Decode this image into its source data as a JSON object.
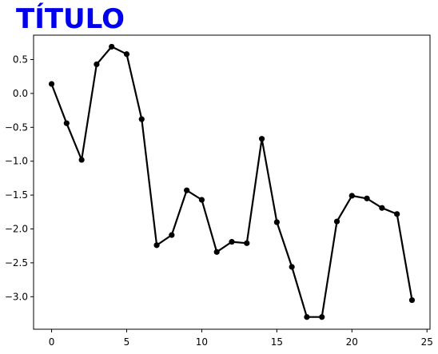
{
  "chart_data": {
    "type": "line",
    "title": "TÍTULO",
    "title_color": "#0000ee",
    "line_color": "#000000",
    "marker": "circle",
    "xlabel": "",
    "ylabel": "",
    "grid": false,
    "xlim": [
      -1.2,
      25.2
    ],
    "ylim": [
      -3.48,
      0.86
    ],
    "x_ticks": [
      0,
      5,
      10,
      15,
      20,
      25
    ],
    "y_ticks": [
      0.5,
      0.0,
      -0.5,
      -1.0,
      -1.5,
      -2.0,
      -2.5,
      -3.0
    ],
    "x_tick_labels": [
      "0",
      "5",
      "10",
      "15",
      "20",
      "25"
    ],
    "y_tick_labels": [
      "0.5",
      "0.0",
      "−0.5",
      "−1.0",
      "−1.5",
      "−2.0",
      "−2.5",
      "−3.0"
    ],
    "series": [
      {
        "x": [
          0,
          1,
          2,
          3,
          4,
          5,
          6,
          7,
          8,
          9,
          10,
          11,
          12,
          13,
          14,
          15,
          16,
          17,
          18,
          19,
          20,
          21,
          22,
          23,
          24
        ],
        "y": [
          0.14,
          -0.44,
          -0.98,
          0.43,
          0.69,
          0.58,
          -0.38,
          -2.24,
          -2.09,
          -1.43,
          -1.57,
          -2.34,
          -2.19,
          -2.21,
          -0.67,
          -1.9,
          -2.56,
          -3.3,
          -3.3,
          -1.89,
          -1.51,
          -1.55,
          -1.69,
          -1.78,
          -3.05
        ]
      }
    ]
  }
}
